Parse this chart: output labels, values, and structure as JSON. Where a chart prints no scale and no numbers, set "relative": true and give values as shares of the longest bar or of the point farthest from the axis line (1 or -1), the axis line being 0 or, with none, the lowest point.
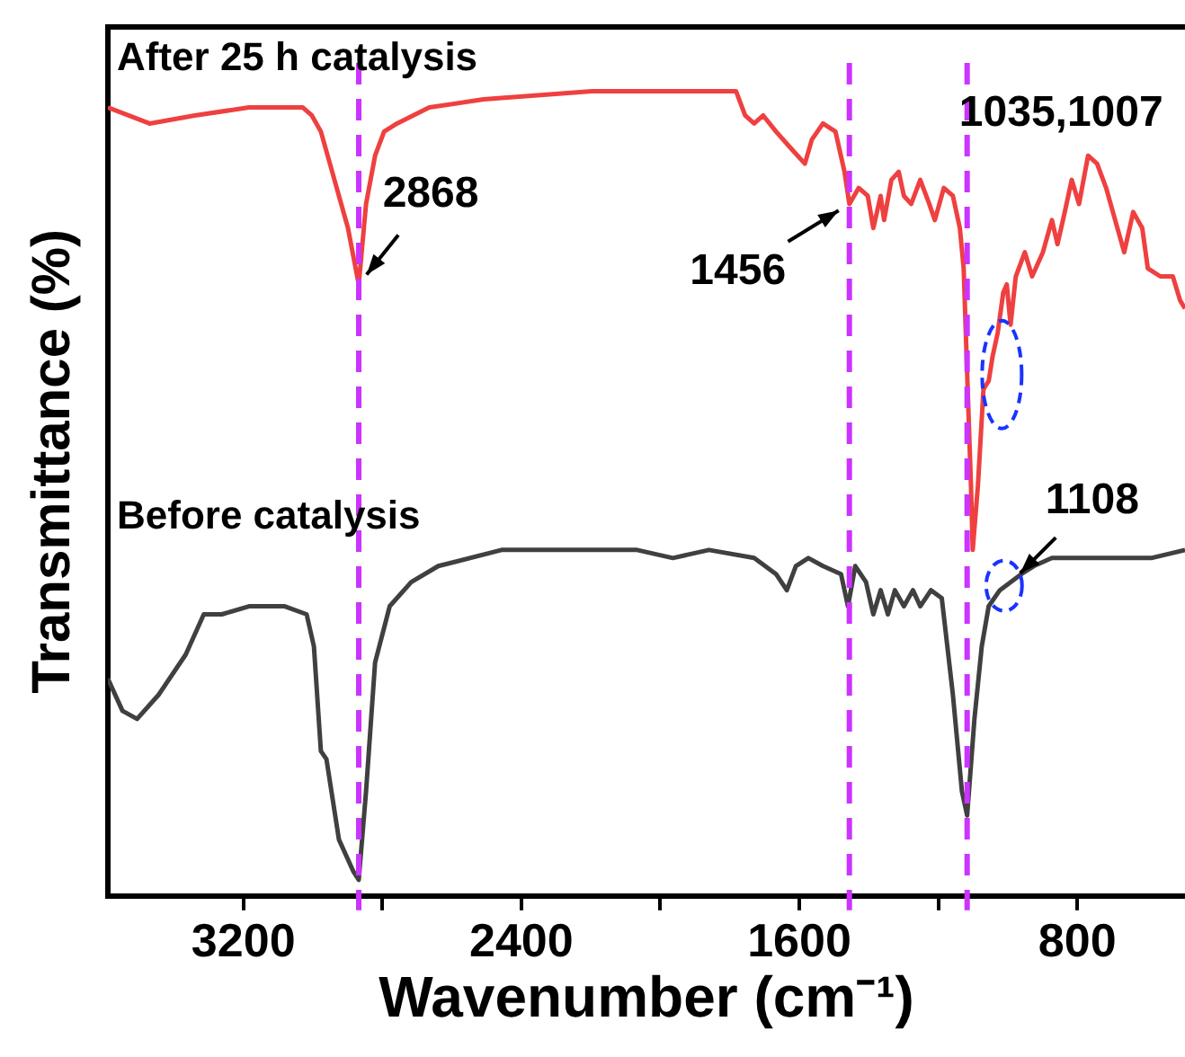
{
  "chart_data": {
    "type": "line",
    "xlabel": "Wavenumber (cm⁻¹)",
    "ylabel": "Transmittance (%)",
    "relative": true,
    "xlim": [
      3590,
      490
    ],
    "xticks": [
      3200,
      {
        "value": 2800,
        "label": null
      },
      2400,
      {
        "value": 2000,
        "label": null
      },
      1600,
      {
        "value": 1200,
        "label": null
      },
      800
    ],
    "grid": false,
    "legend": false,
    "marker": "none",
    "line_style": "solid",
    "series": [
      {
        "name": "After 25 h catalysis",
        "color": "#ef4040",
        "x": [
          3590,
          3470,
          3340,
          3184,
          3029,
          3003,
          2977,
          2951,
          2925,
          2899,
          2868,
          2847,
          2821,
          2795,
          2758,
          2665,
          2509,
          2197,
          2042,
          1860,
          1782,
          1756,
          1730,
          1704,
          1667,
          1626,
          1584,
          1564,
          1532,
          1496,
          1470,
          1456,
          1429,
          1403,
          1387,
          1366,
          1356,
          1335,
          1314,
          1299,
          1278,
          1252,
          1226,
          1210,
          1184,
          1158,
          1138,
          1127,
          1117,
          1106,
          1101,
          1086,
          1070,
          1055,
          1044,
          1029,
          1013,
          1003,
          992,
          977,
          951,
          930,
          899,
          873,
          857,
          836,
          816,
          795,
          769,
          743,
          717,
          691,
          665,
          639,
          613,
          597,
          561,
          525,
          504,
          490
        ],
        "values": [
          0.98,
          0.96,
          0.97,
          0.98,
          0.98,
          0.97,
          0.95,
          0.91,
          0.87,
          0.83,
          0.76,
          0.86,
          0.92,
          0.95,
          0.96,
          0.98,
          0.99,
          1.0,
          1.0,
          1.0,
          1.0,
          0.97,
          0.96,
          0.97,
          0.95,
          0.93,
          0.91,
          0.94,
          0.96,
          0.95,
          0.9,
          0.86,
          0.88,
          0.87,
          0.83,
          0.87,
          0.84,
          0.89,
          0.9,
          0.87,
          0.86,
          0.89,
          0.86,
          0.84,
          0.88,
          0.87,
          0.83,
          0.78,
          0.65,
          0.51,
          0.43,
          0.51,
          0.63,
          0.64,
          0.67,
          0.7,
          0.75,
          0.76,
          0.71,
          0.77,
          0.8,
          0.77,
          0.8,
          0.84,
          0.81,
          0.85,
          0.89,
          0.86,
          0.92,
          0.91,
          0.88,
          0.84,
          0.8,
          0.85,
          0.83,
          0.78,
          0.77,
          0.77,
          0.74,
          0.73
        ]
      },
      {
        "name": "Before catalysis",
        "color": "#404040",
        "x": [
          3590,
          3548,
          3506,
          3444,
          3366,
          3314,
          3262,
          3184,
          3081,
          3018,
          2997,
          2977,
          2961,
          2925,
          2883,
          2868,
          2847,
          2821,
          2779,
          2717,
          2639,
          2457,
          2145,
          2067,
          1964,
          1860,
          1730,
          1667,
          1636,
          1610,
          1574,
          1532,
          1480,
          1460,
          1439,
          1408,
          1387,
          1366,
          1345,
          1325,
          1299,
          1273,
          1252,
          1221,
          1190,
          1158,
          1132,
          1117,
          1096,
          1075,
          1055,
          1023,
          992,
          961,
          925,
          873,
          795,
          691,
          587,
          490
        ],
        "values": [
          0.27,
          0.23,
          0.22,
          0.25,
          0.3,
          0.35,
          0.35,
          0.36,
          0.36,
          0.35,
          0.31,
          0.18,
          0.17,
          0.07,
          0.03,
          0.02,
          0.13,
          0.29,
          0.36,
          0.39,
          0.41,
          0.43,
          0.43,
          0.43,
          0.42,
          0.43,
          0.42,
          0.4,
          0.38,
          0.41,
          0.42,
          0.41,
          0.4,
          0.36,
          0.41,
          0.39,
          0.35,
          0.38,
          0.35,
          0.38,
          0.36,
          0.38,
          0.36,
          0.38,
          0.37,
          0.25,
          0.13,
          0.1,
          0.22,
          0.31,
          0.36,
          0.38,
          0.39,
          0.4,
          0.41,
          0.42,
          0.42,
          0.42,
          0.42,
          0.43
        ]
      }
    ],
    "ref_lines": [
      {
        "axis": "x",
        "value": 2868,
        "color": "#cc33ff",
        "line_style": "dashed"
      },
      {
        "axis": "x",
        "value": 1456,
        "color": "#cc33ff",
        "line_style": "dashed"
      },
      {
        "axis": "x",
        "value": 1117,
        "color": "#cc33ff",
        "line_style": "dashed"
      }
    ],
    "annotations": [
      {
        "text": "2868",
        "x": 2868,
        "y": 0.76
      },
      {
        "text": "1456",
        "x": 1456,
        "y": 0.86
      },
      "1035,1007",
      {
        "text": "1108",
        "x": 990,
        "y": 0.39
      }
    ]
  }
}
